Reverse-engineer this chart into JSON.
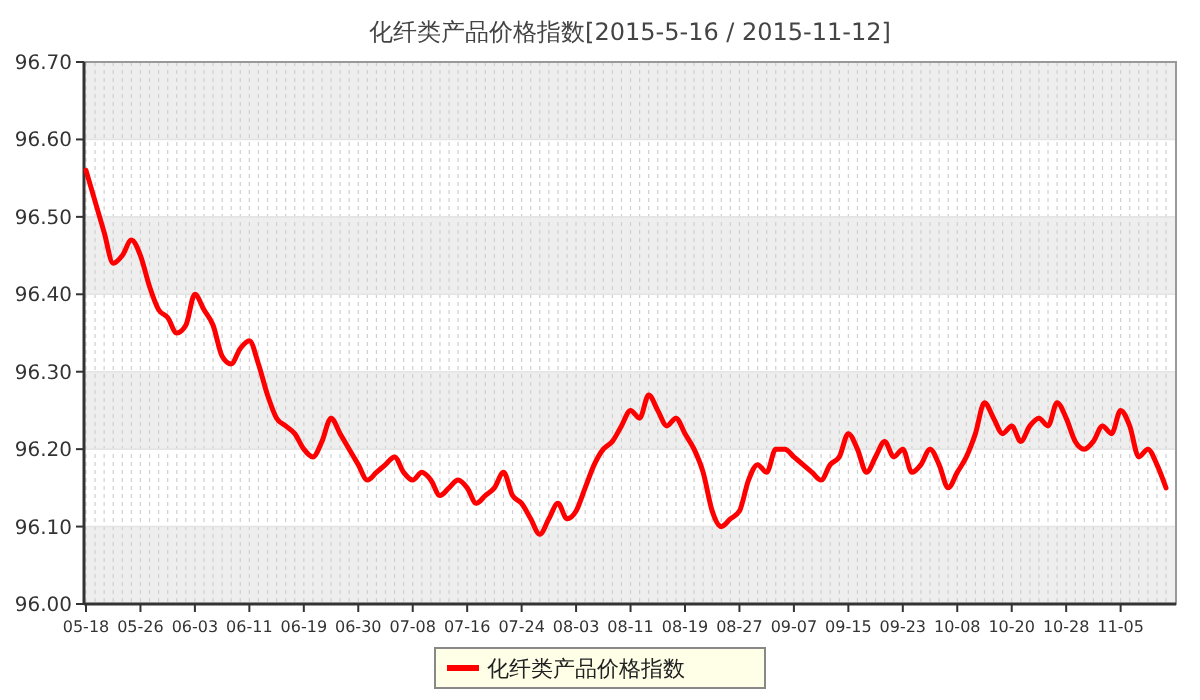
{
  "chart_data": {
    "type": "line",
    "title": "化纤类产品价格指数[2015-5-16 / 2015-11-12]",
    "categories": [
      "05-18",
      null,
      null,
      null,
      null,
      null,
      "05-26",
      null,
      null,
      null,
      null,
      null,
      "06-03",
      null,
      null,
      null,
      null,
      null,
      "06-11",
      null,
      null,
      null,
      null,
      null,
      "06-19",
      null,
      null,
      null,
      null,
      null,
      "06-30",
      null,
      null,
      null,
      null,
      null,
      "07-08",
      null,
      null,
      null,
      null,
      null,
      "07-16",
      null,
      null,
      null,
      null,
      null,
      "07-24",
      null,
      null,
      null,
      null,
      null,
      "08-03",
      null,
      null,
      null,
      null,
      null,
      "08-11",
      null,
      null,
      null,
      null,
      null,
      "08-19",
      null,
      null,
      null,
      null,
      null,
      "08-27",
      null,
      null,
      null,
      null,
      null,
      "09-07",
      null,
      null,
      null,
      null,
      null,
      "09-15",
      null,
      null,
      null,
      null,
      null,
      "09-23",
      null,
      null,
      null,
      null,
      null,
      "10-08",
      null,
      null,
      null,
      null,
      null,
      "10-20",
      null,
      null,
      null,
      null,
      null,
      "10-28",
      null,
      null,
      null,
      null,
      null,
      "11-05",
      null,
      null,
      null,
      null,
      null
    ],
    "series": [
      {
        "name": "化纤类产品价格指数",
        "color": "#ff0000",
        "values": [
          96.56,
          96.52,
          96.48,
          96.44,
          96.45,
          96.47,
          96.45,
          96.41,
          96.38,
          96.37,
          96.35,
          96.36,
          96.4,
          96.38,
          96.36,
          96.32,
          96.31,
          96.33,
          96.34,
          96.31,
          96.27,
          96.24,
          96.23,
          96.22,
          96.2,
          96.19,
          96.21,
          96.24,
          96.22,
          96.2,
          96.18,
          96.16,
          96.17,
          96.18,
          96.19,
          96.17,
          96.16,
          96.17,
          96.16,
          96.14,
          96.15,
          96.16,
          96.15,
          96.13,
          96.14,
          96.15,
          96.17,
          96.14,
          96.13,
          96.11,
          96.09,
          96.11,
          96.13,
          96.11,
          96.12,
          96.15,
          96.18,
          96.2,
          96.21,
          96.23,
          96.25,
          96.24,
          96.27,
          96.25,
          96.23,
          96.24,
          96.22,
          96.2,
          96.17,
          96.12,
          96.1,
          96.11,
          96.12,
          96.16,
          96.18,
          96.17,
          96.2,
          96.2,
          96.19,
          96.18,
          96.17,
          96.16,
          96.18,
          96.19,
          96.22,
          96.2,
          96.17,
          96.19,
          96.21,
          96.19,
          96.2,
          96.17,
          96.18,
          96.2,
          96.18,
          96.15,
          96.17,
          96.19,
          96.22,
          96.26,
          96.24,
          96.22,
          96.23,
          96.21,
          96.23,
          96.24,
          96.23,
          96.26,
          96.24,
          96.21,
          96.2,
          96.21,
          96.23,
          96.22,
          96.25,
          96.23,
          96.19,
          96.2,
          96.18,
          96.15
        ]
      }
    ],
    "ylim": [
      96.0,
      96.7
    ],
    "yticks": [
      {
        "value": 96.0,
        "label": "96.00"
      },
      {
        "value": 96.1,
        "label": "96.10"
      },
      {
        "value": 96.2,
        "label": "96.20"
      },
      {
        "value": 96.3,
        "label": "96.30"
      },
      {
        "value": 96.4,
        "label": "96.40"
      },
      {
        "value": 96.5,
        "label": "96.50"
      },
      {
        "value": 96.6,
        "label": "96.60"
      },
      {
        "value": 96.7,
        "label": "96.70"
      }
    ],
    "grid": true,
    "legend": "bottom",
    "marker": "none",
    "line_style": "solid"
  }
}
